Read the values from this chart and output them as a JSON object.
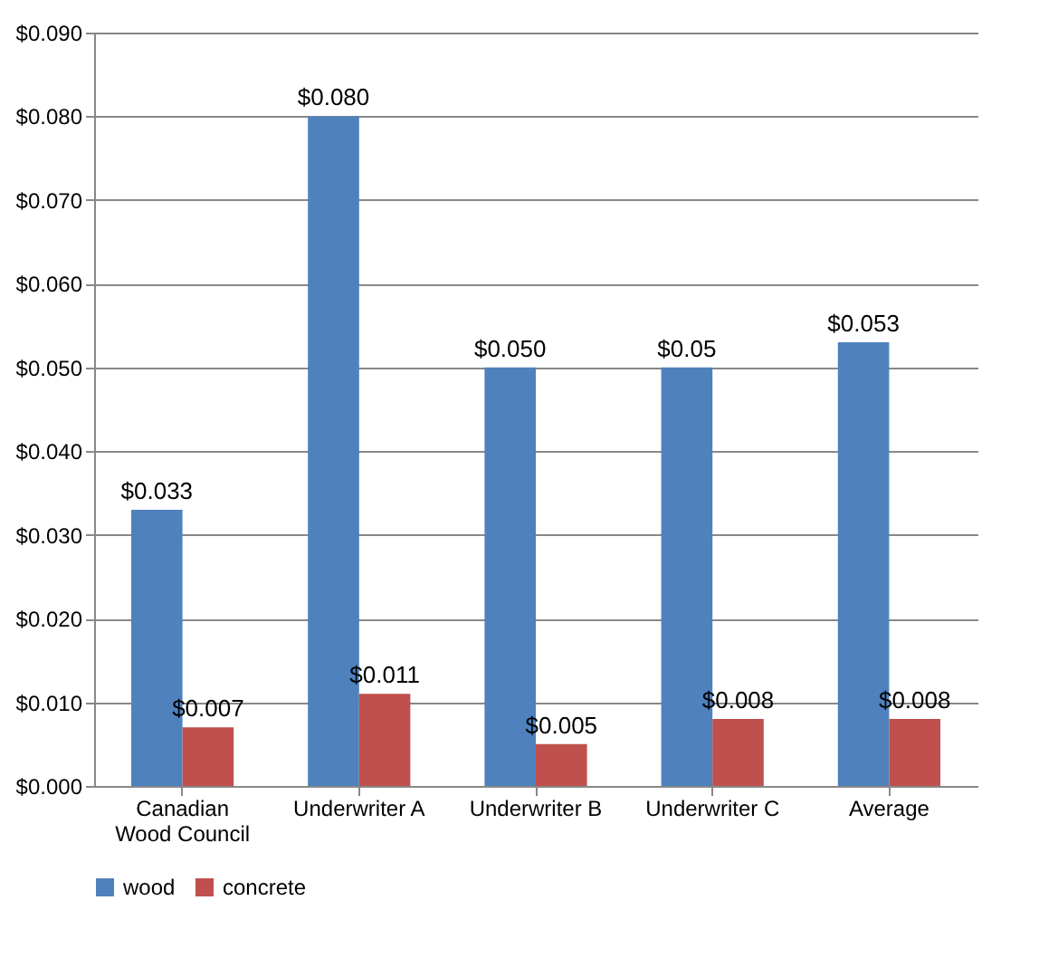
{
  "chart_data": {
    "type": "bar",
    "categories": [
      "Canadian Wood Council",
      "Underwriter A",
      "Underwriter B",
      "Underwriter C",
      "Average"
    ],
    "series": [
      {
        "name": "wood",
        "color": "#4f81bd",
        "values": [
          0.033,
          0.08,
          0.05,
          0.05,
          0.053
        ],
        "value_labels": [
          "$0.033",
          "$0.080",
          "$0.050",
          "$0.05",
          "$0.053"
        ]
      },
      {
        "name": "concrete",
        "color": "#c0504d",
        "values": [
          0.007,
          0.011,
          0.005,
          0.008,
          0.008
        ],
        "value_labels": [
          "$0.007",
          "$0.011",
          "$0.005",
          "$0.008",
          "$0.008"
        ]
      }
    ],
    "ylim": [
      0,
      0.09
    ],
    "yticks": [
      {
        "value": 0,
        "label": "$0.000"
      },
      {
        "value": 0.01,
        "label": "$0.010"
      },
      {
        "value": 0.02,
        "label": "$0.020"
      },
      {
        "value": 0.03,
        "label": "$0.030"
      },
      {
        "value": 0.04,
        "label": "$0.040"
      },
      {
        "value": 0.05,
        "label": "$0.050"
      },
      {
        "value": 0.06,
        "label": "$0.060"
      },
      {
        "value": 0.07,
        "label": "$0.070"
      },
      {
        "value": 0.08,
        "label": "$0.080"
      },
      {
        "value": 0.09,
        "label": "$0.090"
      }
    ],
    "grid": "y",
    "legend": "bottom"
  }
}
